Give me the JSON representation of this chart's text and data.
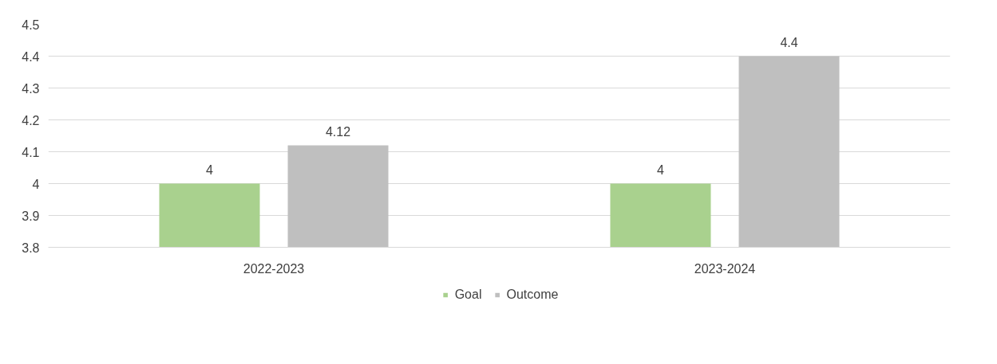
{
  "chart_data": {
    "type": "bar",
    "categories": [
      "2022-2023",
      "2023-2024"
    ],
    "series": [
      {
        "name": "Goal",
        "color": "#a9d18e",
        "values": [
          4,
          4
        ]
      },
      {
        "name": "Outcome",
        "color": "#bfbfbf",
        "values": [
          4.12,
          4.4
        ]
      }
    ],
    "ylim": [
      3.8,
      4.5
    ],
    "yticks": [
      3.8,
      3.9,
      4,
      4.1,
      4.2,
      4.3,
      4.4,
      4.5
    ],
    "grid": "y",
    "legend": "bottom",
    "data_labels": true
  }
}
